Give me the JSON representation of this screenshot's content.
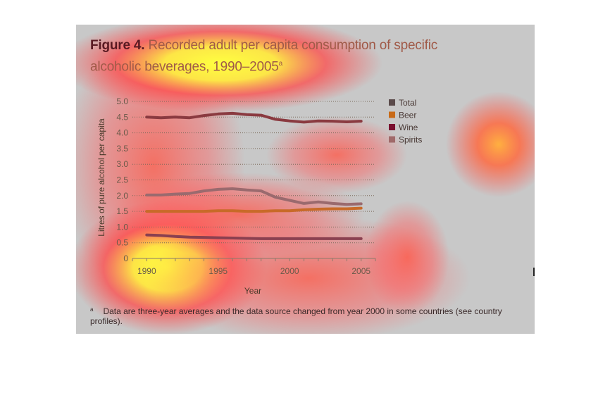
{
  "figure": {
    "label": "Figure 4.",
    "title": "Recorded adult per capita consumption of specific alcoholic beverages, 1990–2005",
    "title_superscript": "a"
  },
  "footnote": {
    "marker": "a",
    "text": "Data are three-year averages and the data source changed from year 2000 in some countries (see country profiles)."
  },
  "colors": {
    "panel_background": "#c8c8c8",
    "heatmap_hot": "#ffff40",
    "heatmap_mid": "#ff4a4a"
  },
  "chart_data": {
    "type": "line",
    "xlabel": "Year",
    "ylabel": "Litres of pure alcohol per capita",
    "xlim": [
      1989,
      2006
    ],
    "ylim": [
      0,
      5.0
    ],
    "x_ticks": [
      1990,
      1995,
      2000,
      2005
    ],
    "y_ticks": [
      0,
      0.5,
      1.0,
      1.5,
      2.0,
      2.5,
      3.0,
      3.5,
      4.0,
      4.5,
      5.0
    ],
    "y_tick_labels": [
      "0",
      "0.5",
      "1.0",
      "1.5",
      "2.0",
      "2.5",
      "3.0",
      "3.5",
      "4.0",
      "4.5",
      "5.0"
    ],
    "grid": "horizontal dotted",
    "legend_position": "right",
    "x": [
      1990,
      1991,
      1992,
      1993,
      1994,
      1995,
      1996,
      1997,
      1998,
      1999,
      2000,
      2001,
      2002,
      2003,
      2004,
      2005
    ],
    "series": [
      {
        "name": "Total",
        "color": "#8a3a40",
        "values": [
          4.5,
          4.48,
          4.5,
          4.48,
          4.55,
          4.6,
          4.62,
          4.58,
          4.56,
          4.43,
          4.38,
          4.34,
          4.38,
          4.37,
          4.35,
          4.37
        ]
      },
      {
        "name": "Beer",
        "color": "#c86a28",
        "values": [
          1.5,
          1.5,
          1.5,
          1.5,
          1.5,
          1.52,
          1.52,
          1.5,
          1.5,
          1.52,
          1.52,
          1.55,
          1.57,
          1.58,
          1.58,
          1.6
        ]
      },
      {
        "name": "Wine",
        "color": "#8a4050",
        "values": [
          0.75,
          0.73,
          0.7,
          0.68,
          0.67,
          0.66,
          0.65,
          0.64,
          0.63,
          0.63,
          0.63,
          0.63,
          0.63,
          0.63,
          0.63,
          0.63
        ]
      },
      {
        "name": "Spirits",
        "color": "#9a6a6e",
        "values": [
          2.02,
          2.02,
          2.05,
          2.07,
          2.15,
          2.2,
          2.22,
          2.18,
          2.15,
          1.95,
          1.85,
          1.75,
          1.8,
          1.75,
          1.72,
          1.74
        ]
      }
    ],
    "legend_swatches": {
      "Total": "#5a4a4a",
      "Beer": "#c86a18",
      "Wine": "#7a1030",
      "Spirits": "#a06a6a"
    }
  }
}
